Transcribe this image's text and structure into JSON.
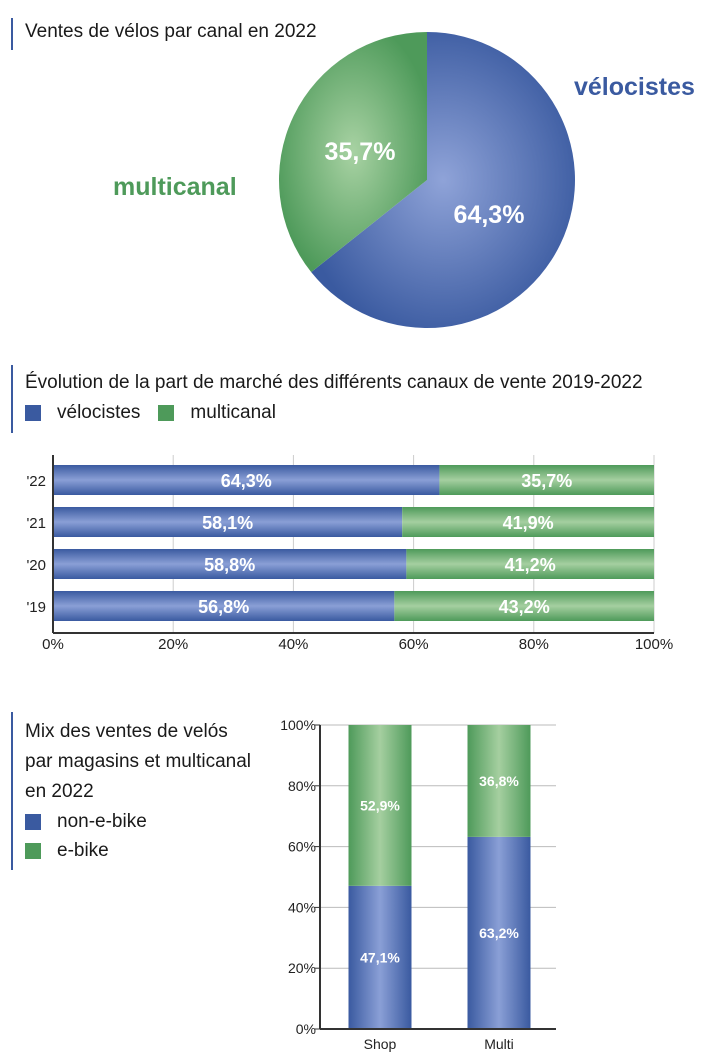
{
  "colors": {
    "blue": "#3a5aa0",
    "blue_light": "#8a9fd6",
    "green": "#4e9a5a",
    "green_light": "#a5cfa0",
    "axis": "#333333",
    "grid": "#bbbbbb"
  },
  "legend_main": {
    "velocistes": "vélocistes",
    "multicanal": "multicanal"
  },
  "legend_mix": {
    "non_ebike": "non-e-bike",
    "ebike": "e-bike"
  },
  "chart_data": [
    {
      "type": "pie",
      "title": "Ventes de vélos par canal en 2022",
      "slices": [
        {
          "name": "vélocistes",
          "value": 64.3,
          "label": "64,3%",
          "color": "#3a5aa0"
        },
        {
          "name": "multicanal",
          "value": 35.7,
          "label": "35,7%",
          "color": "#4e9a5a"
        }
      ]
    },
    {
      "type": "bar",
      "orientation": "horizontal",
      "stacked": true,
      "title": "Évolution de la part de marché des différents canaux de vente 2019-2022",
      "categories": [
        "'22",
        "'21",
        "'20",
        "'19"
      ],
      "series": [
        {
          "name": "vélocistes",
          "values": [
            64.3,
            58.1,
            58.8,
            56.8
          ],
          "labels": [
            "64,3%",
            "58,1%",
            "58,8%",
            "56,8%"
          ],
          "color": "#3a5aa0"
        },
        {
          "name": "multicanal",
          "values": [
            35.7,
            41.9,
            41.2,
            43.2
          ],
          "labels": [
            "35,7%",
            "41,9%",
            "41,2%",
            "43,2%"
          ],
          "color": "#4e9a5a"
        }
      ],
      "xlim": [
        0,
        100
      ],
      "ticks": [
        "0%",
        "20%",
        "40%",
        "60%",
        "80%",
        "100%"
      ],
      "grid": true,
      "legend": "top-left"
    },
    {
      "type": "bar",
      "orientation": "vertical",
      "stacked": true,
      "title_lines": [
        "Mix des ventes de velós",
        "par magasins et multicanal",
        "en 2022"
      ],
      "categories": [
        "Shop",
        "Multi"
      ],
      "series": [
        {
          "name": "non-e-bike",
          "values": [
            47.1,
            63.2
          ],
          "labels": [
            "47,1%",
            "63,2%"
          ],
          "color": "#3a5aa0"
        },
        {
          "name": "e-bike",
          "values": [
            52.9,
            36.8
          ],
          "labels": [
            "52,9%",
            "36,8%"
          ],
          "color": "#4e9a5a"
        }
      ],
      "ylim": [
        0,
        100
      ],
      "ticks": [
        "0%",
        "20%",
        "40%",
        "60%",
        "80%",
        "100%"
      ],
      "grid": true,
      "legend": "left"
    }
  ]
}
